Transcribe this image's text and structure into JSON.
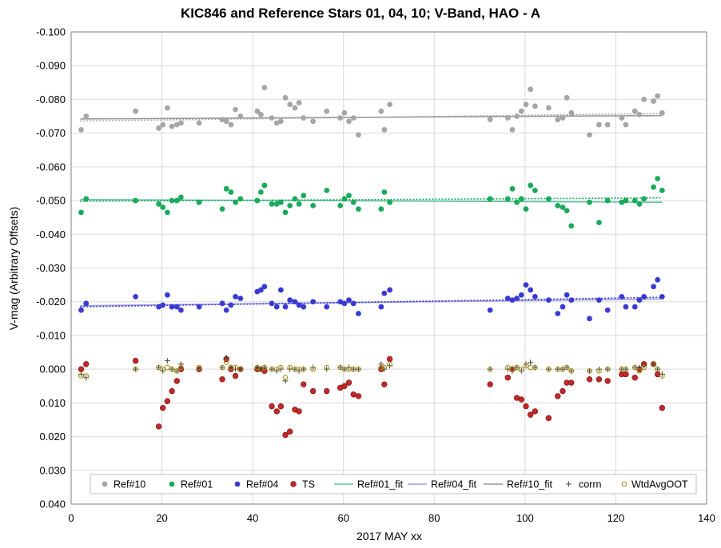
{
  "chart_data": {
    "type": "scatter",
    "title": "KIC846 and Reference Stars 01, 04, 10; V-Band, HAO - A",
    "xlabel": "2017 MAY xx",
    "ylabel": "V-mag (Arbitrary Offsets)",
    "xlim": [
      0,
      140
    ],
    "ylim": [
      0.04,
      -0.1
    ],
    "y_inverted": true,
    "x_ticks": [
      "0",
      "20",
      "40",
      "60",
      "80",
      "100",
      "120",
      "140"
    ],
    "x_tick_values": [
      0,
      20,
      40,
      60,
      80,
      100,
      120,
      140
    ],
    "y_ticks": [
      "-0.100",
      "-0.090",
      "-0.080",
      "-0.070",
      "-0.060",
      "-0.050",
      "-0.040",
      "-0.030",
      "-0.020",
      "-0.010",
      "0.000",
      "0.010",
      "0.020",
      "0.030",
      "0.040"
    ],
    "y_tick_values": [
      -0.1,
      -0.09,
      -0.08,
      -0.07,
      -0.06,
      -0.05,
      -0.04,
      -0.03,
      -0.02,
      -0.01,
      0.0,
      0.01,
      0.02,
      0.03,
      0.04
    ],
    "grid": true,
    "legend_position": "bottom",
    "legend": [
      "Ref#10",
      "Ref#01",
      "Ref#04",
      "TS",
      "Ref#01_fit",
      "Ref#04_fit",
      "Ref#10_fit",
      "corrn",
      "WtdAvgOOT"
    ],
    "colors": {
      "ref10": "#a6a6a6",
      "ref01": "#1aaa5a",
      "ref04": "#3a3ad0",
      "ts": "#c0282a",
      "ref01_fit": "#5cc2a0",
      "ref04_fit": "#9e9ee0",
      "ref10_fit": "#999999",
      "corrn": "#444444",
      "wtdavg": "#a08a10"
    },
    "series": [
      {
        "name": "Ref#10",
        "marker": "circle",
        "x": [
          2.2,
          3.3,
          14.2,
          19.3,
          20.2,
          21.2,
          22.2,
          23.3,
          24.2,
          28.2,
          33.3,
          34.2,
          35.2,
          36.2,
          37.3,
          41.0,
          41.8,
          42.6,
          44.2,
          45.3,
          46.2,
          47.2,
          48.2,
          49.3,
          50.2,
          51.2,
          53.3,
          56.3,
          59.3,
          60.2,
          61.2,
          62.2,
          63.3,
          68.3,
          69.0,
          70.2,
          92.3,
          96.2,
          97.2,
          98.2,
          99.2,
          100.2,
          101.2,
          102.2,
          105.2,
          107.2,
          108.3,
          109.2,
          110.2,
          114.2,
          116.3,
          118.2,
          121.3,
          122.2,
          124.2,
          125.2,
          126.2,
          128.3,
          129.2,
          130.2
        ],
        "values": [
          -0.071,
          -0.075,
          -0.0765,
          -0.0715,
          -0.0725,
          -0.0775,
          -0.072,
          -0.0725,
          -0.073,
          -0.073,
          -0.074,
          -0.0735,
          -0.0725,
          -0.077,
          -0.075,
          -0.0765,
          -0.0755,
          -0.0835,
          -0.0745,
          -0.073,
          -0.0735,
          -0.0805,
          -0.0785,
          -0.0775,
          -0.079,
          -0.0745,
          -0.0735,
          -0.0765,
          -0.0745,
          -0.076,
          -0.0735,
          -0.0745,
          -0.0695,
          -0.0765,
          -0.071,
          -0.0785,
          -0.074,
          -0.0745,
          -0.071,
          -0.075,
          -0.0765,
          -0.0785,
          -0.083,
          -0.078,
          -0.0775,
          -0.074,
          -0.0745,
          -0.0805,
          -0.076,
          -0.0695,
          -0.0725,
          -0.0725,
          -0.0745,
          -0.0725,
          -0.0765,
          -0.0755,
          -0.08,
          -0.0795,
          -0.081,
          -0.076
        ]
      },
      {
        "name": "Ref#01",
        "marker": "circle",
        "x": [
          2.2,
          3.3,
          14.2,
          19.3,
          20.2,
          21.2,
          22.2,
          23.3,
          24.2,
          28.2,
          33.3,
          34.2,
          35.2,
          36.2,
          37.3,
          41.0,
          41.8,
          42.6,
          44.2,
          45.3,
          46.2,
          47.2,
          48.2,
          49.3,
          50.2,
          51.2,
          53.3,
          56.3,
          59.3,
          60.2,
          61.2,
          62.2,
          63.3,
          68.3,
          69.0,
          70.2,
          92.3,
          96.2,
          97.2,
          98.2,
          99.2,
          100.2,
          101.2,
          102.2,
          105.2,
          107.2,
          108.3,
          109.2,
          110.2,
          114.2,
          116.3,
          118.2,
          121.3,
          122.2,
          124.2,
          125.2,
          126.2,
          128.3,
          129.2,
          130.2
        ],
        "values": [
          -0.0465,
          -0.0505,
          -0.05,
          -0.049,
          -0.048,
          -0.0465,
          -0.05,
          -0.05,
          -0.051,
          -0.0495,
          -0.0475,
          -0.0535,
          -0.0525,
          -0.0495,
          -0.0505,
          -0.05,
          -0.0525,
          -0.0545,
          -0.049,
          -0.049,
          -0.0495,
          -0.0465,
          -0.0485,
          -0.0505,
          -0.049,
          -0.0515,
          -0.0485,
          -0.053,
          -0.0485,
          -0.0505,
          -0.0515,
          -0.0495,
          -0.0475,
          -0.0475,
          -0.0525,
          -0.0495,
          -0.0505,
          -0.0505,
          -0.0535,
          -0.0495,
          -0.0505,
          -0.0475,
          -0.0545,
          -0.053,
          -0.0505,
          -0.0485,
          -0.048,
          -0.047,
          -0.0425,
          -0.0495,
          -0.0435,
          -0.05,
          -0.0495,
          -0.05,
          -0.05,
          -0.049,
          -0.0505,
          -0.054,
          -0.0565,
          -0.053
        ]
      },
      {
        "name": "Ref#04",
        "marker": "circle",
        "x": [
          2.2,
          3.3,
          14.2,
          19.3,
          20.2,
          21.2,
          22.2,
          23.3,
          24.2,
          28.2,
          33.3,
          34.2,
          35.2,
          36.2,
          37.3,
          41.0,
          41.8,
          42.6,
          44.2,
          45.3,
          46.2,
          47.2,
          48.2,
          49.3,
          50.2,
          51.2,
          53.3,
          56.3,
          59.3,
          60.2,
          61.2,
          62.2,
          63.3,
          68.3,
          69.0,
          70.2,
          92.3,
          96.2,
          97.2,
          98.2,
          99.2,
          100.2,
          101.2,
          102.2,
          105.2,
          107.2,
          108.3,
          109.2,
          110.2,
          114.2,
          116.3,
          118.2,
          121.3,
          122.2,
          124.2,
          125.2,
          126.2,
          128.3,
          129.2,
          130.2
        ],
        "values": [
          -0.0175,
          -0.0195,
          -0.0215,
          -0.0185,
          -0.019,
          -0.022,
          -0.0185,
          -0.0185,
          -0.0175,
          -0.0185,
          -0.0195,
          -0.0175,
          -0.019,
          -0.0215,
          -0.021,
          -0.023,
          -0.0235,
          -0.0245,
          -0.0195,
          -0.0185,
          -0.0235,
          -0.0185,
          -0.0205,
          -0.02,
          -0.019,
          -0.0185,
          -0.02,
          -0.0185,
          -0.02,
          -0.0195,
          -0.0205,
          -0.0195,
          -0.0165,
          -0.0185,
          -0.0225,
          -0.0235,
          -0.0175,
          -0.021,
          -0.0205,
          -0.021,
          -0.022,
          -0.025,
          -0.0235,
          -0.0215,
          -0.0205,
          -0.0165,
          -0.0185,
          -0.022,
          -0.0205,
          -0.015,
          -0.0205,
          -0.0175,
          -0.0215,
          -0.0185,
          -0.0185,
          -0.0205,
          -0.0215,
          -0.0245,
          -0.0265,
          -0.0215
        ]
      },
      {
        "name": "TS",
        "marker": "circle",
        "x": [
          2.2,
          3.3,
          14.2,
          19.3,
          20.2,
          21.2,
          22.2,
          23.3,
          24.2,
          28.2,
          33.3,
          34.2,
          35.2,
          36.2,
          37.3,
          41.0,
          41.8,
          42.6,
          44.2,
          45.3,
          46.2,
          47.2,
          48.2,
          49.3,
          50.2,
          51.2,
          53.3,
          56.3,
          59.3,
          60.2,
          61.2,
          62.2,
          63.3,
          68.3,
          69.0,
          70.2,
          92.3,
          96.2,
          97.2,
          98.2,
          99.2,
          100.2,
          101.2,
          102.2,
          105.2,
          107.2,
          108.3,
          109.2,
          110.2,
          114.2,
          116.3,
          118.2,
          121.3,
          122.2,
          124.2,
          125.2,
          126.2,
          128.3,
          129.2,
          130.2
        ],
        "values": [
          0.0,
          -0.0015,
          -0.0025,
          0.017,
          0.0115,
          0.0095,
          0.0065,
          0.0035,
          0.0,
          0.0,
          0.003,
          -0.003,
          0.0,
          0.002,
          0.0,
          0.0,
          0.0,
          0.0005,
          0.011,
          0.0125,
          0.011,
          0.0195,
          0.0185,
          0.012,
          0.0125,
          0.0045,
          0.0065,
          0.0065,
          0.0055,
          0.005,
          0.004,
          0.0075,
          0.008,
          0.0,
          0.0045,
          -0.003,
          0.0045,
          0.0025,
          0.0,
          0.0085,
          0.009,
          0.011,
          0.0135,
          0.0125,
          0.0145,
          0.008,
          0.0065,
          0.004,
          0.004,
          0.003,
          0.003,
          0.0035,
          0.0015,
          0.0015,
          0.0025,
          0.0,
          -0.0015,
          -0.0015,
          0.0015,
          0.0115
        ]
      },
      {
        "name": "corrn",
        "marker": "plus",
        "x": [
          2.2,
          3.3,
          14.2,
          19.3,
          20.2,
          21.2,
          22.2,
          23.3,
          24.2,
          28.2,
          33.3,
          34.2,
          35.2,
          36.2,
          37.3,
          41.0,
          41.8,
          42.6,
          44.2,
          45.3,
          46.2,
          47.2,
          48.2,
          49.3,
          50.2,
          51.2,
          53.3,
          56.3,
          59.3,
          60.2,
          61.2,
          62.2,
          63.3,
          68.3,
          69.0,
          70.2,
          92.3,
          96.2,
          97.2,
          98.2,
          99.2,
          100.2,
          101.2,
          102.2,
          105.2,
          107.2,
          108.3,
          109.2,
          110.2,
          114.2,
          116.3,
          118.2,
          121.3,
          122.2,
          124.2,
          125.2,
          126.2,
          128.3,
          129.2,
          130.2
        ],
        "values": [
          0.0015,
          0.0025,
          0.0,
          -0.0005,
          0.0005,
          -0.0025,
          0.0,
          0.0005,
          -0.0015,
          0.0,
          -0.0005,
          -0.0035,
          -0.0005,
          0.0,
          0.0,
          -0.0005,
          0.0,
          -0.0005,
          0.0,
          0.0005,
          0.0,
          0.0035,
          0.0,
          0.0,
          0.0005,
          0.0,
          -0.0005,
          0.0,
          -0.0005,
          0.0,
          -0.0005,
          0.0,
          0.0,
          -0.0015,
          0.0,
          -0.001,
          0.0,
          0.0,
          0.0005,
          -0.0005,
          0.0005,
          -0.0015,
          -0.002,
          -0.0005,
          0.0,
          0.0,
          0.0,
          -0.0005,
          0.0005,
          0.0005,
          0.0,
          0.0,
          0.0,
          0.0,
          -0.0005,
          -0.0005,
          -0.001,
          -0.0015,
          0.0,
          0.0015
        ]
      },
      {
        "name": "WtdAvgOOT",
        "marker": "open-circle",
        "x": [
          2.2,
          3.3,
          14.2,
          19.3,
          20.2,
          21.2,
          22.2,
          23.3,
          24.2,
          28.2,
          33.3,
          34.2,
          35.2,
          36.2,
          37.3,
          41.0,
          41.8,
          42.6,
          44.2,
          45.3,
          46.2,
          47.2,
          48.2,
          49.3,
          50.2,
          51.2,
          53.3,
          56.3,
          59.3,
          60.2,
          61.2,
          62.2,
          63.3,
          68.3,
          69.0,
          70.2,
          92.3,
          96.2,
          97.2,
          98.2,
          99.2,
          100.2,
          101.2,
          102.2,
          105.2,
          107.2,
          108.3,
          109.2,
          110.2,
          114.2,
          116.3,
          118.2,
          121.3,
          122.2,
          124.2,
          125.2,
          126.2,
          128.3,
          129.2,
          130.2
        ],
        "values": [
          0.002,
          0.002,
          0.0,
          -0.0005,
          0.0,
          -0.0005,
          0.0,
          0.0005,
          -0.0005,
          -0.0005,
          -0.0005,
          -0.002,
          -0.0005,
          -0.0005,
          0.0,
          -0.0005,
          0.0,
          -0.0005,
          0.0,
          0.0,
          -0.0005,
          0.0025,
          -0.0005,
          0.0,
          0.0,
          0.0,
          0.0,
          -0.0005,
          -0.0005,
          0.0,
          0.0,
          0.0,
          0.0,
          -0.0005,
          -0.0005,
          -0.0015,
          0.0,
          -0.0005,
          0.0,
          -0.0005,
          0.0,
          -0.001,
          -0.0005,
          -0.0005,
          0.0,
          0.0,
          0.0,
          -0.0005,
          0.0005,
          0.0005,
          0.0005,
          0.0,
          0.0,
          0.0,
          -0.0005,
          0.0005,
          -0.0005,
          -0.0015,
          0.0,
          0.002
        ]
      },
      {
        "name": "Ref#01_fit",
        "line": "solid",
        "x": [
          2.0,
          130.2
        ],
        "values": [
          -0.0503,
          -0.0495
        ]
      },
      {
        "name": "Ref#04_fit",
        "line": "solid",
        "x": [
          2.0,
          130.2
        ],
        "values": [
          -0.0188,
          -0.0208
        ]
      },
      {
        "name": "Ref#10_fit",
        "line": "solid",
        "x": [
          2.0,
          130.2
        ],
        "values": [
          -0.0742,
          -0.0752
        ]
      },
      {
        "line": "dotted",
        "color_of": "ref10",
        "x": [
          2.0,
          130.2
        ],
        "values": [
          -0.0736,
          -0.0758
        ]
      },
      {
        "line": "dotted",
        "color_of": "ref01",
        "x": [
          2.0,
          130.2
        ],
        "values": [
          -0.0498,
          -0.0508
        ]
      },
      {
        "line": "dotted",
        "color_of": "ref04",
        "x": [
          2.0,
          130.2
        ],
        "values": [
          -0.0185,
          -0.0213
        ]
      }
    ]
  }
}
